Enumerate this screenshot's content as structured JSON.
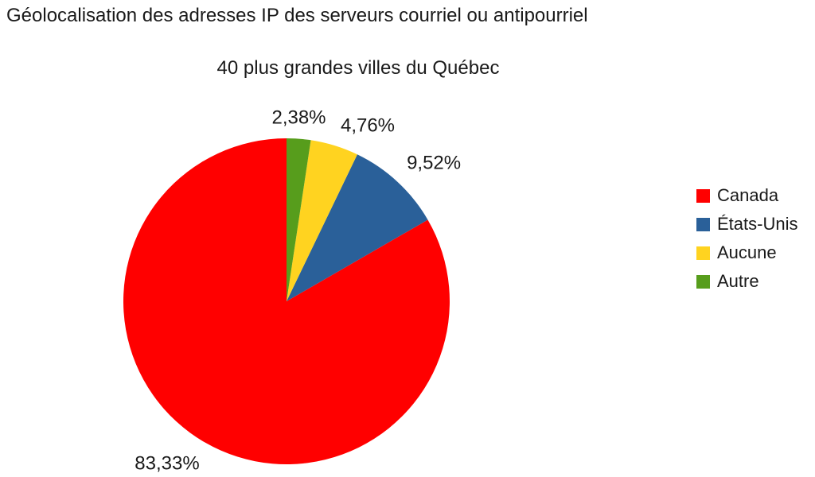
{
  "page": {
    "background_color": "#FFFFFF",
    "text_color": "#1A1A1A"
  },
  "chart_data": {
    "type": "pie",
    "title": "Géolocalisation des adresses IP des serveurs courriel ou antipourriel",
    "subtitle": "40 plus grandes villes du Québec",
    "legend_position": "right",
    "start_angle": "12-oclock",
    "direction": "counterclockwise",
    "slices": [
      {
        "label": "Canada",
        "value": 83.33,
        "pct_label": "83,33%",
        "color": "#FF0000"
      },
      {
        "label": "États-Unis",
        "value": 9.52,
        "pct_label": "9,52%",
        "color": "#2A6099"
      },
      {
        "label": "Aucune",
        "value": 4.76,
        "pct_label": "4,76%",
        "color": "#FFD320"
      },
      {
        "label": "Autre",
        "value": 2.38,
        "pct_label": "2,38%",
        "color": "#579D1C"
      }
    ]
  }
}
